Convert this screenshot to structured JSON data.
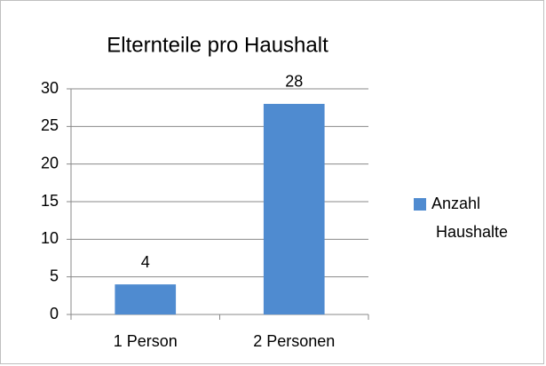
{
  "chart_data": {
    "type": "bar",
    "title": "Elternteile pro Haushalt",
    "categories": [
      "1 Person",
      "2 Personen"
    ],
    "series": [
      {
        "name": "Anzahl Haushalte",
        "color": "#4f8bd0",
        "values": [
          4,
          28
        ]
      }
    ],
    "ylim": [
      0,
      30
    ],
    "yticks": [
      0,
      5,
      10,
      15,
      20,
      25,
      30
    ],
    "grid": true,
    "legend": "right",
    "data_labels": true
  }
}
